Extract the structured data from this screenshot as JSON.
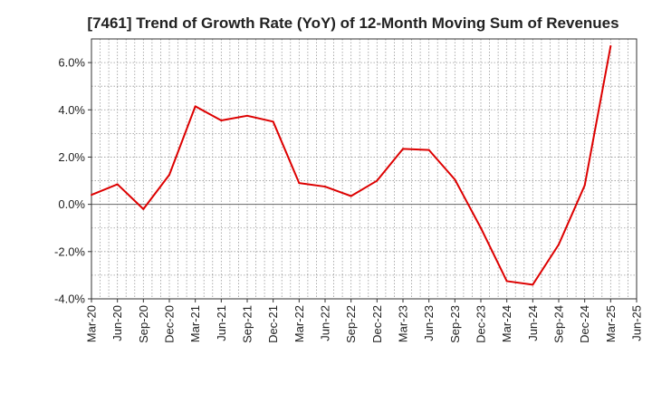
{
  "chart_data": {
    "type": "line",
    "title": "[7461]  Trend of Growth Rate (YoY) of 12-Month Moving Sum of Revenues",
    "xlabel": "",
    "ylabel": "",
    "x_ticks": [
      "Mar-20",
      "Jun-20",
      "Sep-20",
      "Dec-20",
      "Mar-21",
      "Jun-21",
      "Sep-21",
      "Dec-21",
      "Mar-22",
      "Jun-22",
      "Sep-22",
      "Dec-22",
      "Mar-23",
      "Jun-23",
      "Sep-23",
      "Dec-23",
      "Mar-24",
      "Jun-24",
      "Sep-24",
      "Dec-24",
      "Mar-25",
      "Jun-25"
    ],
    "y_ticks": [
      {
        "value": -4.0,
        "label": "-4.0%"
      },
      {
        "value": -2.0,
        "label": "-2.0%"
      },
      {
        "value": 0.0,
        "label": "0.0%"
      },
      {
        "value": 2.0,
        "label": "2.0%"
      },
      {
        "value": 4.0,
        "label": "4.0%"
      },
      {
        "value": 6.0,
        "label": "6.0%"
      }
    ],
    "ylim": [
      -4.0,
      7.0
    ],
    "grid": true,
    "series": [
      {
        "name": "",
        "color": "#dd0000",
        "x": [
          "Mar-20",
          "Jun-20",
          "Sep-20",
          "Dec-20",
          "Mar-21",
          "Jun-21",
          "Sep-21",
          "Dec-21",
          "Mar-22",
          "Jun-22",
          "Sep-22",
          "Dec-22",
          "Mar-23",
          "Jun-23",
          "Sep-23",
          "Dec-23",
          "Mar-24",
          "Jun-24",
          "Sep-24",
          "Dec-24",
          "Mar-25"
        ],
        "values": [
          0.4,
          0.85,
          -0.2,
          1.25,
          4.15,
          3.55,
          3.75,
          3.5,
          0.9,
          0.75,
          0.35,
          1.0,
          2.35,
          2.3,
          1.05,
          -1.0,
          -3.25,
          -3.4,
          -1.7,
          0.8,
          6.7
        ]
      }
    ]
  }
}
